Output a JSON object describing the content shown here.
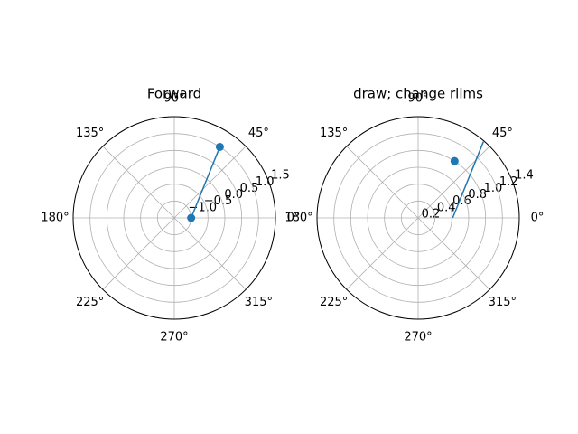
{
  "chart_data": [
    {
      "type": "polar",
      "title": "Forward",
      "thetaticks": [
        {
          "value": 0,
          "label": "0°"
        },
        {
          "value": 45,
          "label": "45°"
        },
        {
          "value": 90,
          "label": "90°"
        },
        {
          "value": 135,
          "label": "135°"
        },
        {
          "value": 180,
          "label": "180°"
        },
        {
          "value": 225,
          "label": "225°"
        },
        {
          "value": 270,
          "label": "270°"
        },
        {
          "value": 315,
          "label": "315°"
        }
      ],
      "rlim": [
        -1.5,
        1.5
      ],
      "rticks": [
        {
          "value": -1,
          "label": "−1.0"
        },
        {
          "value": -0.5,
          "label": "−0.5"
        },
        {
          "value": 0,
          "label": "0.0"
        },
        0.5,
        {
          "value": 1,
          "label": "1.0"
        },
        1.5
      ],
      "grid": true,
      "series": [
        {
          "kind": "line",
          "color": "#1f77b4",
          "theta": [
            0,
            57.3
          ],
          "r": [
            -1,
            1
          ]
        },
        {
          "kind": "scatter",
          "color": "#1f77b4",
          "theta": [
            0,
            57.3
          ],
          "r": [
            -1,
            1
          ]
        }
      ]
    },
    {
      "type": "polar",
      "title": "draw; change rlims",
      "thetaticks": [
        {
          "value": 0,
          "label": "0°"
        },
        {
          "value": 45,
          "label": "45°"
        },
        {
          "value": 90,
          "label": "90°"
        },
        {
          "value": 135,
          "label": "135°"
        },
        {
          "value": 180,
          "label": "180°"
        },
        {
          "value": 225,
          "label": "225°"
        },
        {
          "value": 270,
          "label": "270°"
        },
        {
          "value": 315,
          "label": "315°"
        }
      ],
      "rlim": [
        0.2,
        1.4
      ],
      "rticks": [
        0.2,
        0.4,
        0.6,
        0.8,
        {
          "value": 1,
          "label": "1.0"
        },
        1.2,
        1.4
      ],
      "grid": true,
      "series": [
        {
          "kind": "line",
          "color": "#1f77b4",
          "theta": [
            0,
            49.4
          ],
          "r": [
            0.61,
            1.39
          ]
        },
        {
          "kind": "scatter",
          "color": "#1f77b4",
          "theta": [
            57.3
          ],
          "r": [
            1
          ]
        }
      ]
    }
  ]
}
